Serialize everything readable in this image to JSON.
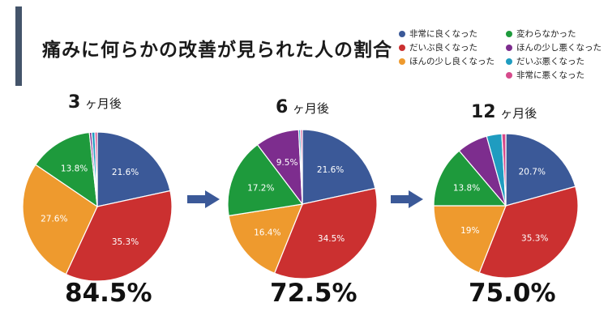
{
  "title": "痛みに何らかの改善が見られた人の割合",
  "legend": [
    {
      "label": "非常に良くなった",
      "color": "#3b5998"
    },
    {
      "label": "変わらなかった",
      "color": "#1e9a3c"
    },
    {
      "label": "だいぶ良くなった",
      "color": "#cb3030"
    },
    {
      "label": "ほんの少し悪くなった",
      "color": "#7d2d8e"
    },
    {
      "label": "ほんの少し良くなった",
      "color": "#ee9a2e"
    },
    {
      "label": "だいぶ悪くなった",
      "color": "#1f9cc0"
    },
    {
      "label": "",
      "color": ""
    },
    {
      "label": "非常に悪くなった",
      "color": "#d64b8c"
    }
  ],
  "arrow_color": "#3b5998",
  "chart_data": [
    {
      "type": "pie",
      "title_num": "3",
      "title_unit": "ヶ月後",
      "total": "84.5%",
      "slices": [
        {
          "category": "非常に良くなった",
          "value": 21.6,
          "label": "21.6%"
        },
        {
          "category": "だいぶ良くなった",
          "value": 35.3,
          "label": "35.3%"
        },
        {
          "category": "ほんの少し良くなった",
          "value": 27.6,
          "label": "27.6%"
        },
        {
          "category": "変わらなかった",
          "value": 13.8,
          "label": "13.8%"
        },
        {
          "category": "ほんの少し悪くなった",
          "value": 0.5,
          "label": ""
        },
        {
          "category": "だいぶ悪くなった",
          "value": 0.7,
          "label": ""
        },
        {
          "category": "非常に悪くなった",
          "value": 0.5,
          "label": ""
        }
      ]
    },
    {
      "type": "pie",
      "title_num": "6",
      "title_unit": "ヶ月後",
      "total": "72.5%",
      "slices": [
        {
          "category": "非常に良くなった",
          "value": 21.6,
          "label": "21.6%"
        },
        {
          "category": "だいぶ良くなった",
          "value": 34.5,
          "label": "34.5%"
        },
        {
          "category": "ほんの少し良くなった",
          "value": 16.4,
          "label": "16.4%"
        },
        {
          "category": "変わらなかった",
          "value": 17.2,
          "label": "17.2%"
        },
        {
          "category": "ほんの少し悪くなった",
          "value": 9.5,
          "label": "9.5%"
        },
        {
          "category": "だいぶ悪くなった",
          "value": 0.4,
          "label": ""
        },
        {
          "category": "非常に悪くなった",
          "value": 0.4,
          "label": ""
        }
      ]
    },
    {
      "type": "pie",
      "title_num": "12",
      "title_unit": "ヶ月後",
      "total": "75.0%",
      "slices": [
        {
          "category": "非常に良くなった",
          "value": 20.7,
          "label": "20.7%"
        },
        {
          "category": "だいぶ良くなった",
          "value": 35.3,
          "label": "35.3%"
        },
        {
          "category": "ほんの少し良くなった",
          "value": 19.0,
          "label": "19%"
        },
        {
          "category": "変わらなかった",
          "value": 13.8,
          "label": "13.8%"
        },
        {
          "category": "ほんの少し悪くなった",
          "value": 6.9,
          "label": ""
        },
        {
          "category": "だいぶ悪くなった",
          "value": 3.4,
          "label": ""
        },
        {
          "category": "非常に悪くなった",
          "value": 0.9,
          "label": ""
        }
      ]
    }
  ]
}
